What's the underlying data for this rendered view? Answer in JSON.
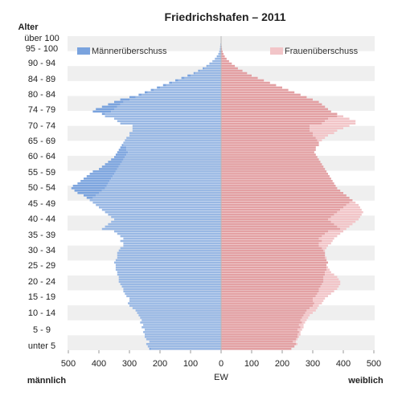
{
  "chart_data": {
    "type": "bar",
    "orientation": "horizontal-pyramid",
    "title": "Friedrichshafen – 2011",
    "ylabel": "Alter",
    "xlabel": "EW",
    "left_label": "männlich",
    "right_label": "weiblich",
    "x_ticks": [
      "500",
      "400",
      "300",
      "200",
      "100",
      "0",
      "100",
      "200",
      "300",
      "400",
      "500"
    ],
    "xlim": [
      -500,
      500
    ],
    "age_labels": [
      "unter 5",
      "5 - 9",
      "10 - 14",
      "15 - 19",
      "20 - 24",
      "25 - 29",
      "30 - 34",
      "35 - 39",
      "40 - 44",
      "45 - 49",
      "50 - 54",
      "55 - 59",
      "60 - 64",
      "65 - 69",
      "70 - 74",
      "74 - 79",
      "80 - 84",
      "84 - 89",
      "90 - 94",
      "95 - 100",
      "über 100"
    ],
    "legend": {
      "male_surplus": "Männerüberschuss",
      "female_surplus": "Frauenüberschuss",
      "placement": "top"
    },
    "colors": {
      "male": "#99b8e4",
      "female": "#e3a0a3",
      "male_surplus": "#7aa3de",
      "female_surplus": "#f2c5c8",
      "grid_band": "#efefef"
    },
    "series": [
      {
        "name": "männlich",
        "values": [
          235,
          240,
          245,
          235,
          245,
          250,
          250,
          255,
          250,
          260,
          255,
          265,
          260,
          265,
          270,
          275,
          280,
          290,
          300,
          305,
          300,
          300,
          310,
          315,
          320,
          320,
          325,
          330,
          335,
          335,
          335,
          340,
          340,
          345,
          345,
          345,
          350,
          345,
          340,
          340,
          340,
          335,
          330,
          320,
          320,
          330,
          320,
          330,
          340,
          350,
          390,
          380,
          370,
          360,
          350,
          360,
          370,
          380,
          390,
          400,
          410,
          420,
          430,
          440,
          450,
          470,
          480,
          490,
          485,
          470,
          460,
          450,
          440,
          430,
          420,
          400,
          390,
          380,
          370,
          360,
          350,
          345,
          340,
          335,
          330,
          325,
          320,
          315,
          310,
          300,
          300,
          290,
          290,
          290,
          330,
          340,
          350,
          380,
          390,
          420,
          410,
          390,
          370,
          350,
          330,
          300,
          270,
          250,
          230,
          210,
          190,
          170,
          150,
          130,
          110,
          90,
          75,
          60,
          48,
          38,
          28,
          20,
          14,
          9,
          6,
          4,
          3,
          2,
          1,
          1,
          1
        ]
      },
      {
        "name": "weiblich",
        "values": [
          230,
          240,
          250,
          245,
          250,
          255,
          260,
          260,
          265,
          270,
          270,
          275,
          280,
          285,
          290,
          300,
          310,
          315,
          320,
          330,
          335,
          340,
          350,
          360,
          370,
          380,
          385,
          390,
          390,
          385,
          380,
          370,
          360,
          355,
          350,
          345,
          350,
          345,
          345,
          340,
          340,
          340,
          345,
          350,
          360,
          365,
          370,
          380,
          390,
          400,
          410,
          420,
          430,
          440,
          450,
          455,
          460,
          465,
          460,
          455,
          450,
          440,
          430,
          420,
          410,
          400,
          390,
          380,
          375,
          370,
          365,
          360,
          355,
          350,
          345,
          340,
          335,
          330,
          325,
          320,
          315,
          310,
          305,
          310,
          310,
          320,
          320,
          330,
          340,
          350,
          370,
          380,
          400,
          420,
          440,
          440,
          420,
          400,
          380,
          360,
          350,
          340,
          330,
          320,
          300,
          280,
          260,
          240,
          220,
          200,
          180,
          160,
          140,
          120,
          100,
          85,
          70,
          55,
          45,
          35,
          26,
          18,
          12,
          8,
          5,
          3,
          2,
          1,
          1,
          0,
          0
        ]
      }
    ]
  }
}
